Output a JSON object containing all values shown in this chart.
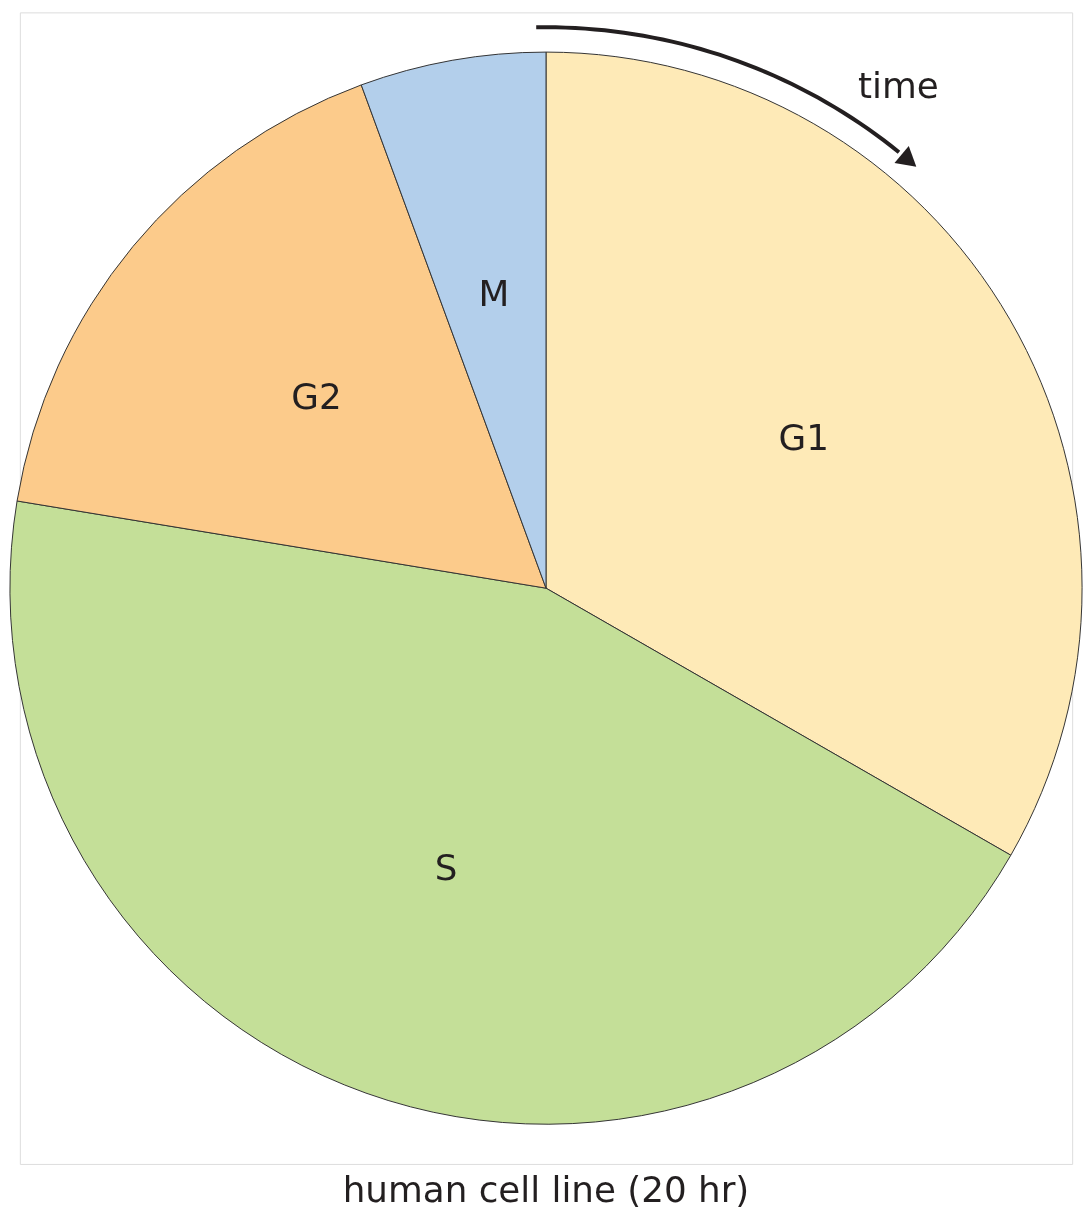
{
  "chart_data": {
    "type": "pie",
    "categories": [
      "G1",
      "S",
      "G2",
      "M"
    ],
    "values": [
      33.3,
      44.3,
      16.8,
      5.6
    ],
    "colors": [
      "#feeab7",
      "#c4df98",
      "#fccb8b",
      "#b3cfeb"
    ],
    "legend": false,
    "annotations": [
      "time",
      "human cell line (20 hr)"
    ]
  }
}
